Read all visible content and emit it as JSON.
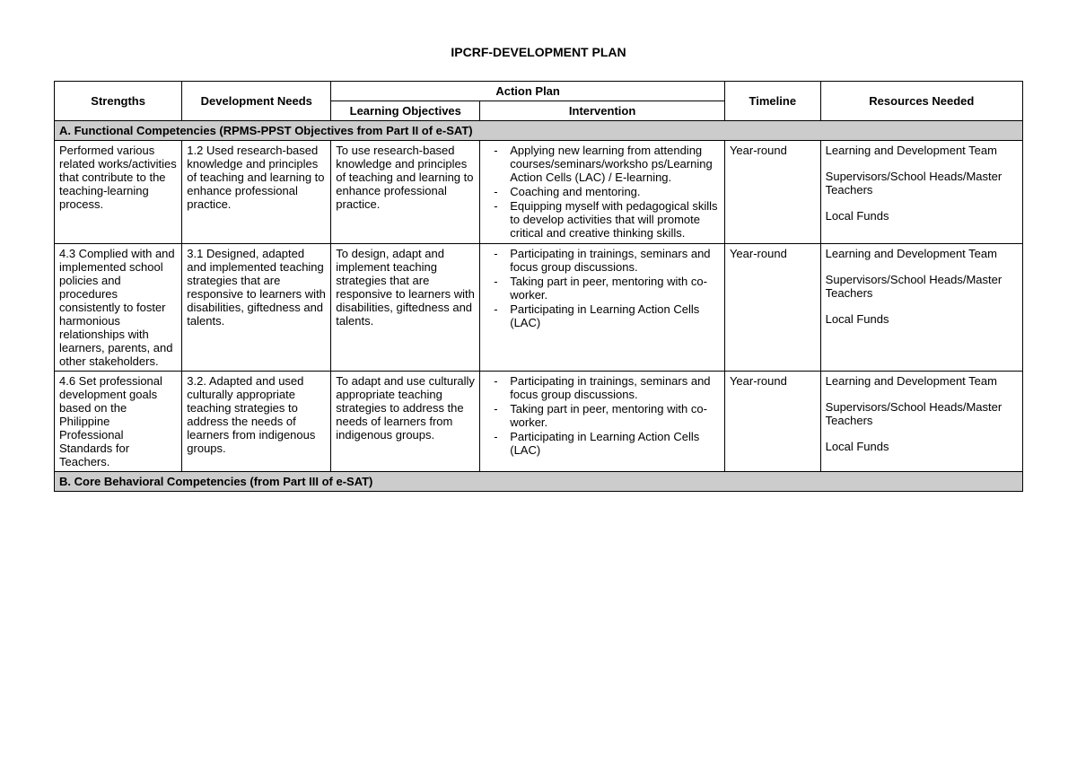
{
  "title": "IPCRF-DEVELOPMENT PLAN",
  "headers": {
    "strengths": "Strengths",
    "devneeds": "Development Needs",
    "actionplan": "Action Plan",
    "learnobj": "Learning Objectives",
    "intervention": "Intervention",
    "timeline": "Timeline",
    "resources": "Resources Needed"
  },
  "sectionA": "A. Functional Competencies (RPMS-PPST Objectives from Part II of e-SAT)",
  "sectionB": "B. Core Behavioral Competencies (from Part III of e-SAT)",
  "rows": [
    {
      "strengths": "Performed various related works/activities that contribute to the teaching-learning process.",
      "devneeds": "1.2 Used research-based knowledge and principles of teaching and learning to enhance professional practice.",
      "learnobj": "To use research-based knowledge and principles of teaching and learning to enhance professional practice.",
      "interventions": [
        "Applying new learning from attending courses/seminars/worksho ps/Learning Action Cells (LAC) / E-learning.",
        "Coaching and mentoring.",
        "Equipping myself with pedagogical skills to develop activities that will promote critical and creative thinking skills."
      ],
      "timeline": "Year-round",
      "resources": [
        "Learning and Development Team",
        "Supervisors/School Heads/Master Teachers",
        "Local Funds"
      ]
    },
    {
      "strengths": "4.3 Complied with and implemented school policies and procedures consistently to foster harmonious relationships with learners, parents, and other stakeholders.",
      "devneeds": "3.1 Designed, adapted and implemented teaching strategies that are responsive to learners with disabilities, giftedness and talents.",
      "learnobj": "To design, adapt and implement teaching strategies that are responsive to learners with disabilities, giftedness and talents.",
      "interventions": [
        "Participating in trainings, seminars and focus group discussions.",
        "Taking part in peer, mentoring with co-worker.",
        "Participating in Learning Action Cells (LAC)"
      ],
      "timeline": "Year-round",
      "resources": [
        "Learning and Development Team",
        "Supervisors/School Heads/Master Teachers",
        "Local Funds"
      ]
    },
    {
      "strengths": "4.6 Set professional development goals based on the Philippine Professional Standards for Teachers.",
      "devneeds": "3.2. Adapted and used culturally appropriate teaching strategies to address the needs of learners from indigenous groups.",
      "learnobj": "To adapt and use culturally appropriate teaching strategies to address the needs of learners from indigenous groups.",
      "interventions": [
        "Participating in trainings, seminars and focus group discussions.",
        "Taking part in peer, mentoring with co-worker.",
        "Participating in Learning Action Cells (LAC)"
      ],
      "timeline": "Year-round",
      "resources": [
        "Learning and Development Team",
        "Supervisors/School Heads/Master Teachers",
        "Local Funds"
      ]
    }
  ]
}
